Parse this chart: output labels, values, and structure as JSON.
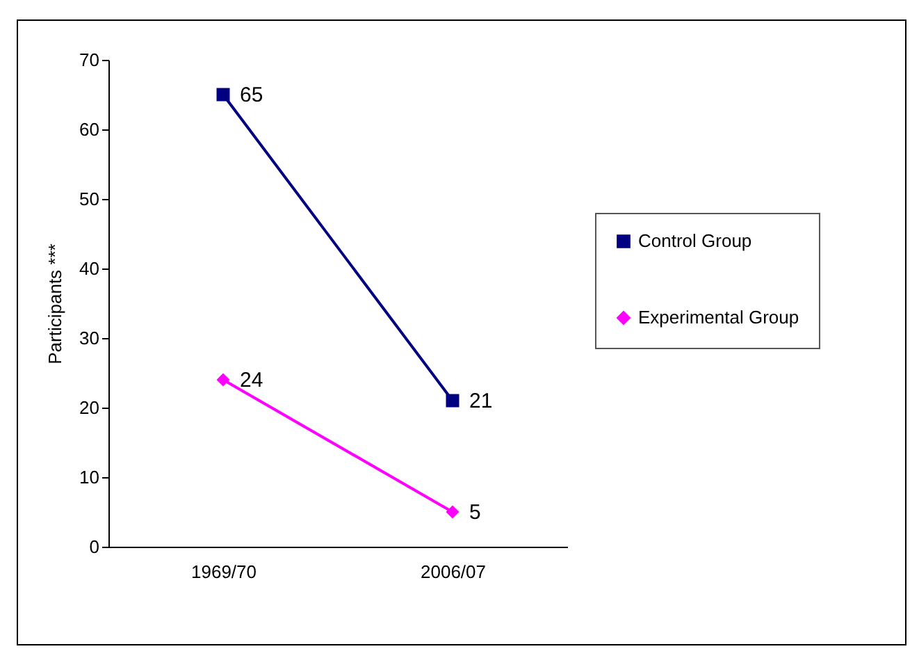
{
  "chart_data": {
    "type": "line",
    "ylabel": "Participants ***",
    "categories": [
      "1969/70",
      "2006/07"
    ],
    "series": [
      {
        "name": "Control Group",
        "color": "#000080",
        "marker": "square",
        "values": [
          65,
          21
        ]
      },
      {
        "name": "Experimental Group",
        "color": "#ff00ff",
        "marker": "diamond",
        "values": [
          24,
          5
        ]
      }
    ],
    "ylim": [
      0,
      70
    ],
    "yticks": [
      0,
      10,
      20,
      30,
      40,
      50,
      60,
      70
    ],
    "grid": false,
    "legend": "right",
    "data_labels": true
  }
}
